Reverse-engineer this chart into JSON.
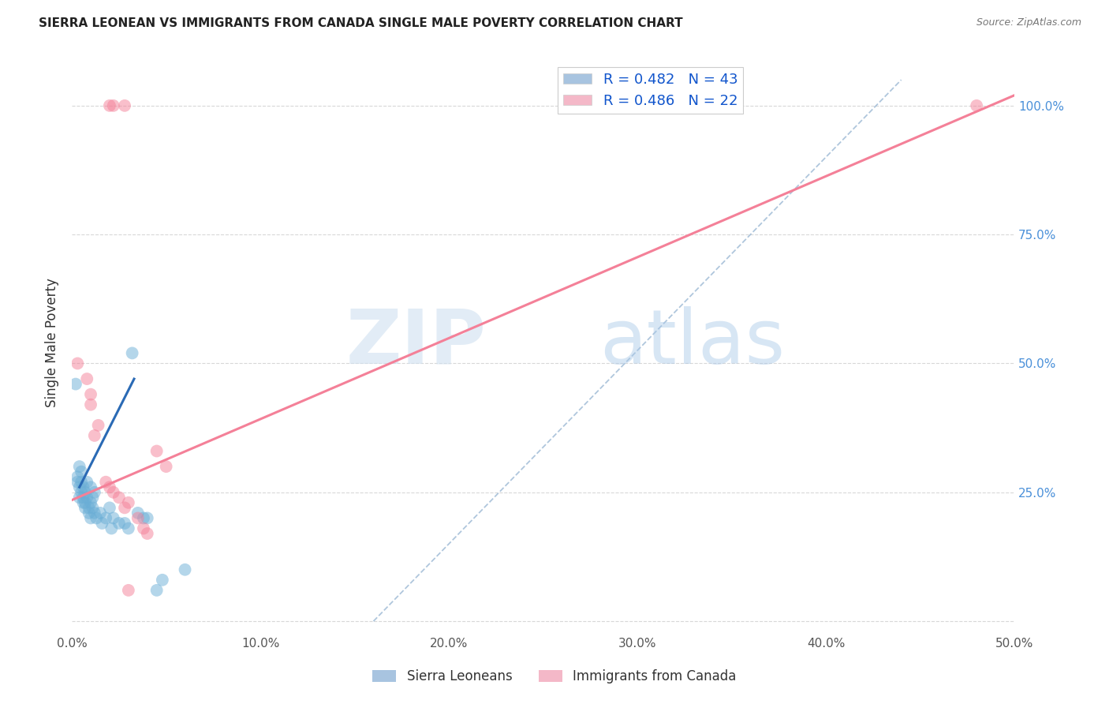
{
  "title": "SIERRA LEONEAN VS IMMIGRANTS FROM CANADA SINGLE MALE POVERTY CORRELATION CHART",
  "source": "Source: ZipAtlas.com",
  "ylabel": "Single Male Poverty",
  "xlim": [
    0,
    0.5
  ],
  "ylim": [
    -0.02,
    1.1
  ],
  "xticks": [
    0,
    0.1,
    0.2,
    0.3,
    0.4,
    0.5
  ],
  "yticks": [
    0,
    0.25,
    0.5,
    0.75,
    1.0
  ],
  "xtick_labels": [
    "0.0%",
    "10.0%",
    "20.0%",
    "30.0%",
    "40.0%",
    "50.0%"
  ],
  "ytick_labels_right": [
    "",
    "25.0%",
    "50.0%",
    "75.0%",
    "100.0%"
  ],
  "legend1_label": "R = 0.482   N = 43",
  "legend2_label": "R = 0.486   N = 22",
  "legend1_patch_color": "#a8c4e0",
  "legend2_patch_color": "#f4b8c8",
  "blue_color": "#6aaed6",
  "pink_color": "#f48098",
  "grid_color": "#d8d8d8",
  "background_color": "#ffffff",
  "title_color": "#222222",
  "source_color": "#777777",
  "right_axis_color": "#4a90d9",
  "blue_scatter": [
    [
      0.002,
      0.46
    ],
    [
      0.003,
      0.28
    ],
    [
      0.003,
      0.27
    ],
    [
      0.004,
      0.3
    ],
    [
      0.004,
      0.26
    ],
    [
      0.004,
      0.24
    ],
    [
      0.005,
      0.29
    ],
    [
      0.005,
      0.27
    ],
    [
      0.005,
      0.25
    ],
    [
      0.006,
      0.26
    ],
    [
      0.006,
      0.24
    ],
    [
      0.006,
      0.23
    ],
    [
      0.007,
      0.25
    ],
    [
      0.007,
      0.23
    ],
    [
      0.007,
      0.22
    ],
    [
      0.008,
      0.27
    ],
    [
      0.008,
      0.24
    ],
    [
      0.009,
      0.22
    ],
    [
      0.009,
      0.21
    ],
    [
      0.01,
      0.26
    ],
    [
      0.01,
      0.23
    ],
    [
      0.01,
      0.2
    ],
    [
      0.011,
      0.24
    ],
    [
      0.011,
      0.22
    ],
    [
      0.012,
      0.25
    ],
    [
      0.012,
      0.21
    ],
    [
      0.013,
      0.2
    ],
    [
      0.015,
      0.21
    ],
    [
      0.016,
      0.19
    ],
    [
      0.018,
      0.2
    ],
    [
      0.02,
      0.22
    ],
    [
      0.021,
      0.18
    ],
    [
      0.022,
      0.2
    ],
    [
      0.025,
      0.19
    ],
    [
      0.028,
      0.19
    ],
    [
      0.03,
      0.18
    ],
    [
      0.032,
      0.52
    ],
    [
      0.035,
      0.21
    ],
    [
      0.038,
      0.2
    ],
    [
      0.04,
      0.2
    ],
    [
      0.045,
      0.06
    ],
    [
      0.048,
      0.08
    ],
    [
      0.06,
      0.1
    ]
  ],
  "pink_scatter": [
    [
      0.02,
      1.0
    ],
    [
      0.022,
      1.0
    ],
    [
      0.028,
      1.0
    ],
    [
      0.003,
      0.5
    ],
    [
      0.008,
      0.47
    ],
    [
      0.01,
      0.44
    ],
    [
      0.01,
      0.42
    ],
    [
      0.012,
      0.36
    ],
    [
      0.014,
      0.38
    ],
    [
      0.018,
      0.27
    ],
    [
      0.02,
      0.26
    ],
    [
      0.022,
      0.25
    ],
    [
      0.025,
      0.24
    ],
    [
      0.028,
      0.22
    ],
    [
      0.03,
      0.23
    ],
    [
      0.035,
      0.2
    ],
    [
      0.038,
      0.18
    ],
    [
      0.04,
      0.17
    ],
    [
      0.045,
      0.33
    ],
    [
      0.05,
      0.3
    ],
    [
      0.03,
      0.06
    ],
    [
      0.48,
      1.0
    ]
  ],
  "blue_line_x": [
    0.004,
    0.033
  ],
  "blue_line_y": [
    0.26,
    0.47
  ],
  "pink_line_x": [
    0.0,
    0.5
  ],
  "pink_line_y": [
    0.235,
    1.02
  ],
  "ref_line_x": [
    0.16,
    0.44
  ],
  "ref_line_y": [
    0.0,
    1.05
  ]
}
